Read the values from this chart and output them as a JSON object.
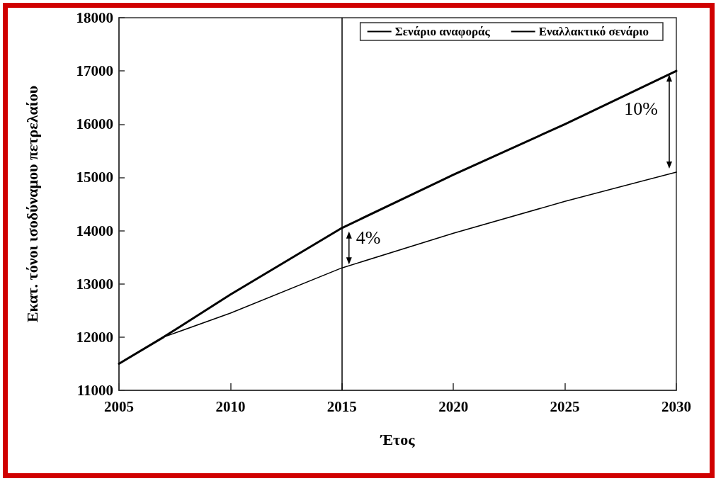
{
  "chart_data": {
    "type": "line",
    "xlabel": "Έτος",
    "ylabel": "Εκατ. τόνοι ισοδύναμου πετρελαίου",
    "x": [
      2005,
      2007,
      2010,
      2015,
      2020,
      2025,
      2030
    ],
    "series": [
      {
        "name": "Σενάριο αναφοράς",
        "color": "#000000",
        "values": [
          11500,
          12000,
          12800,
          14050,
          15050,
          16000,
          17000
        ]
      },
      {
        "name": "Εναλλακτικό σενάριο",
        "color": "#000000",
        "values": [
          11500,
          12000,
          12450,
          13300,
          13950,
          14550,
          15100
        ]
      }
    ],
    "xlim": [
      2005,
      2030
    ],
    "xticks": [
      2005,
      2010,
      2015,
      2020,
      2025,
      2030
    ],
    "ylim": [
      11000,
      18000
    ],
    "yticks": [
      11000,
      12000,
      13000,
      14000,
      15000,
      16000,
      17000,
      18000
    ],
    "ref_lines": [
      {
        "axis": "x",
        "value": 2015,
        "color": "#000000"
      }
    ],
    "annotations": [
      {
        "text": "4%",
        "x": 2015,
        "y": 13650
      },
      "10%"
    ],
    "grid": false,
    "legend": "top right",
    "marker": "none",
    "line_style": "solid"
  }
}
